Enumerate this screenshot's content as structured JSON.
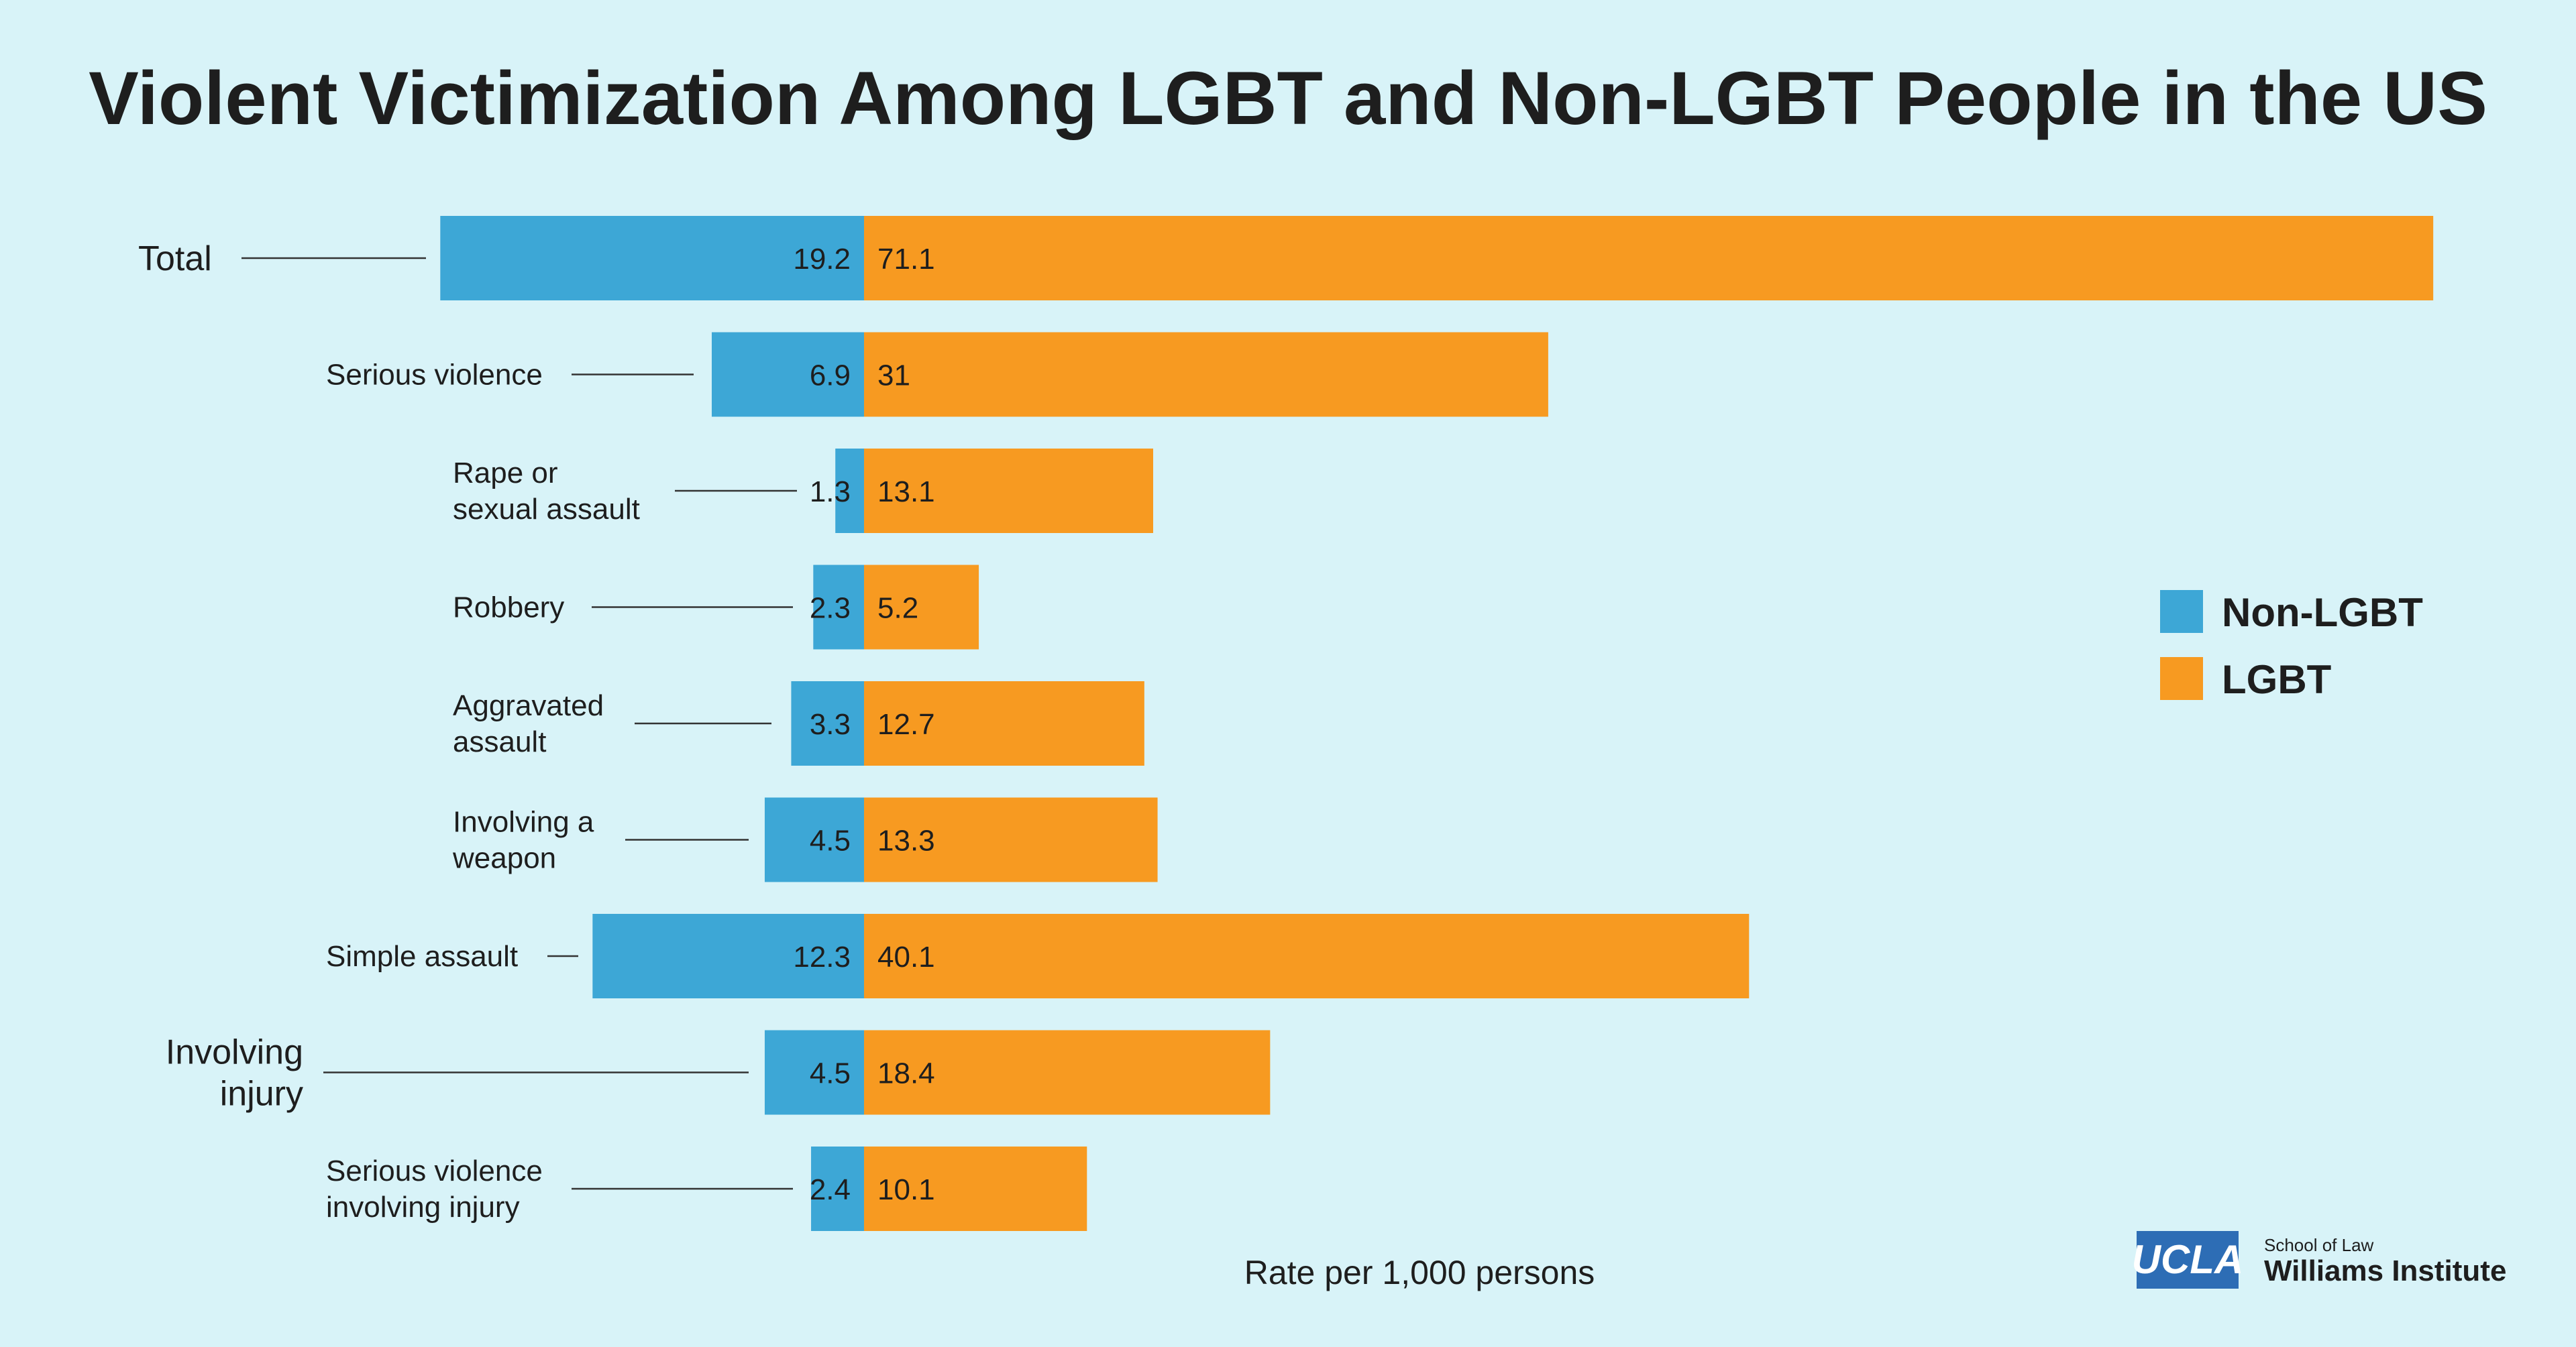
{
  "chart_data": {
    "type": "bar",
    "orientation": "horizontal-diverging",
    "title": "Violent Victimization Among LGBT and Non-LGBT People in the US",
    "xlabel": "Rate per 1,000 persons",
    "categories": [
      [
        "Total"
      ],
      [
        "Serious violence"
      ],
      [
        "Rape or",
        "sexual assault"
      ],
      [
        "Robbery"
      ],
      [
        "Aggravated",
        "assault"
      ],
      [
        "Involving a",
        "weapon"
      ],
      [
        "Simple assault"
      ],
      [
        "Involving",
        "injury"
      ],
      [
        "Serious violence",
        "involving injury"
      ]
    ],
    "series": [
      {
        "name": "Non-LGBT",
        "color": "#3da7d6",
        "values": [
          19.2,
          6.9,
          1.3,
          2.3,
          3.3,
          4.5,
          12.3,
          4.5,
          2.4
        ],
        "labels": [
          "19.2",
          "6.9",
          "1.3",
          "2.3",
          "3.3",
          "4.5",
          "12.3",
          "4.5",
          "2.4"
        ]
      },
      {
        "name": "LGBT",
        "color": "#f79a21",
        "values": [
          71.1,
          31,
          13.1,
          5.2,
          12.7,
          13.3,
          40.1,
          18.4,
          10.1
        ],
        "labels": [
          "71.1",
          "31",
          "13.1",
          "5.2",
          "12.7",
          "13.3",
          "40.1",
          "18.4",
          "10.1"
        ]
      }
    ],
    "legend_position": "right",
    "grid": false
  },
  "logo": {
    "box_text": "UCLA",
    "line1": "School of Law",
    "line2": "Williams Institute",
    "color": "#2d6db5"
  }
}
